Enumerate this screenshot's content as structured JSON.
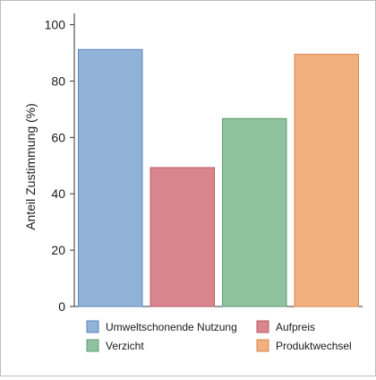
{
  "chart_data": {
    "type": "bar",
    "categories": [
      "Umweltschonende Nutzung",
      "Aufpreis",
      "Verzicht",
      "Produktwechsel"
    ],
    "values": [
      91.2,
      49.3,
      66.7,
      89.5
    ],
    "ylabel": "Anteil Zustimmung (%)",
    "xlabel": "",
    "ylim": [
      0,
      104
    ],
    "yticks": [
      0,
      20,
      40,
      60,
      80,
      100
    ],
    "legend_position": "bottom",
    "grid": false,
    "colors": [
      "#92b3d9",
      "#d9868e",
      "#8fc29e",
      "#f2b07e"
    ],
    "edge_colors": [
      "#5b84b8",
      "#b85a64",
      "#5f9c71",
      "#d8884d"
    ]
  }
}
